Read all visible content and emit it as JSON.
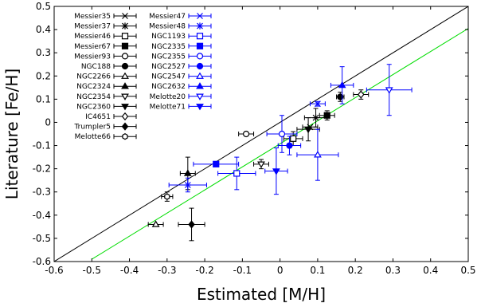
{
  "chart_data": {
    "type": "scatter",
    "xlabel": "Estimated [M/H]",
    "ylabel": "Literature [Fe/H]",
    "xlim": [
      -0.6,
      0.5
    ],
    "ylim": [
      -0.6,
      0.5
    ],
    "xticks": [
      "-0.6",
      "-0.5",
      "-0.4",
      "-0.3",
      "-0.2",
      "-0.1",
      "0",
      "0.1",
      "0.2",
      "0.3",
      "0.4",
      "0.5"
    ],
    "yticks": [
      "-0.6",
      "-0.5",
      "-0.4",
      "-0.3",
      "-0.2",
      "-0.1",
      "0",
      "0.1",
      "0.2",
      "0.3",
      "0.4",
      "0.5"
    ],
    "grid": false,
    "legend_position": "top-left",
    "colors": {
      "black": "#000000",
      "blue": "#0000ff",
      "fit": "#00dd00"
    },
    "lines": [
      {
        "kind": "one-to-one",
        "color": "#000000",
        "x": [
          -0.6,
          0.5
        ],
        "y": [
          -0.6,
          0.5
        ]
      },
      {
        "kind": "fit",
        "color": "#00dd00",
        "x": [
          -0.5,
          0.5
        ],
        "y": [
          -0.59,
          0.405
        ]
      }
    ],
    "series": [
      {
        "name": "Messier35",
        "marker": "x",
        "color": "#000000",
        "x": 0.08,
        "y": -0.02,
        "xerr": 0.02,
        "yerr": 0.0
      },
      {
        "name": "Messier37",
        "marker": "asterisk",
        "color": "#000000",
        "x": 0.095,
        "y": 0.02,
        "xerr": 0.03,
        "yerr": 0.04
      },
      {
        "name": "Messier46",
        "marker": "square-open",
        "color": "#000000",
        "x": 0.035,
        "y": -0.07,
        "xerr": 0.025,
        "yerr": 0.03
      },
      {
        "name": "Messier67",
        "marker": "square-filled",
        "color": "#000000",
        "x": 0.125,
        "y": 0.03,
        "xerr": 0.02,
        "yerr": 0.02
      },
      {
        "name": "Messier93",
        "marker": "circle-open",
        "color": "#000000",
        "x": -0.09,
        "y": -0.05,
        "xerr": 0.02,
        "yerr": 0.0
      },
      {
        "name": "NGC188",
        "marker": "circle-filled",
        "color": "#000000",
        "x": 0.16,
        "y": 0.11,
        "xerr": 0.01,
        "yerr": 0.02
      },
      {
        "name": "NGC2266",
        "marker": "triangle-open",
        "color": "#000000",
        "x": -0.33,
        "y": -0.44,
        "xerr": 0.02,
        "yerr": 0.0
      },
      {
        "name": "NGC2324",
        "marker": "triangle-filled",
        "color": "#000000",
        "x": -0.245,
        "y": -0.22,
        "xerr": 0.02,
        "yerr": 0.07
      },
      {
        "name": "NGC2354",
        "marker": "triangle-down-open",
        "color": "#000000",
        "x": -0.05,
        "y": -0.18,
        "xerr": 0.02,
        "yerr": 0.02
      },
      {
        "name": "NGC2360",
        "marker": "triangle-down-filled",
        "color": "#000000",
        "x": 0.075,
        "y": -0.03,
        "xerr": 0.03,
        "yerr": 0.05
      },
      {
        "name": "IC4651",
        "marker": "diamond-open",
        "color": "#000000",
        "x": 0.215,
        "y": 0.12,
        "xerr": 0.02,
        "yerr": 0.02
      },
      {
        "name": "Trumpler5",
        "marker": "diamond-filled",
        "color": "#000000",
        "x": -0.235,
        "y": -0.44,
        "xerr": 0.035,
        "yerr": 0.07
      },
      {
        "name": "Melotte66",
        "marker": "hexagon-open",
        "color": "#000000",
        "x": -0.3,
        "y": -0.32,
        "xerr": 0.015,
        "yerr": 0.02
      },
      {
        "name": "Messier47",
        "marker": "x",
        "color": "#0000ff",
        "x": 0.1,
        "y": 0.08,
        "xerr": 0.02,
        "yerr": 0.01
      },
      {
        "name": "Messier48",
        "marker": "asterisk",
        "color": "#0000ff",
        "x": -0.245,
        "y": -0.27,
        "xerr": 0.05,
        "yerr": 0.03
      },
      {
        "name": "NGC1193",
        "marker": "square-open",
        "color": "#0000ff",
        "x": -0.115,
        "y": -0.22,
        "xerr": 0.05,
        "yerr": 0.07
      },
      {
        "name": "NGC2335",
        "marker": "square-filled",
        "color": "#0000ff",
        "x": -0.17,
        "y": -0.18,
        "xerr": 0.06,
        "yerr": 0.0
      },
      {
        "name": "NGC2355",
        "marker": "circle-open",
        "color": "#0000ff",
        "x": 0.005,
        "y": -0.05,
        "xerr": 0.04,
        "yerr": 0.08
      },
      {
        "name": "NGC2527",
        "marker": "circle-filled",
        "color": "#0000ff",
        "x": 0.025,
        "y": -0.1,
        "xerr": 0.03,
        "yerr": 0.04
      },
      {
        "name": "NGC2547",
        "marker": "triangle-open",
        "color": "#0000ff",
        "x": 0.1,
        "y": -0.14,
        "xerr": 0.055,
        "yerr": 0.11
      },
      {
        "name": "NGC2632",
        "marker": "triangle-filled",
        "color": "#0000ff",
        "x": 0.165,
        "y": 0.16,
        "xerr": 0.03,
        "yerr": 0.08
      },
      {
        "name": "Melotte20",
        "marker": "triangle-down-open",
        "color": "#0000ff",
        "x": 0.29,
        "y": 0.14,
        "xerr": 0.06,
        "yerr": 0.11
      },
      {
        "name": "Melotte71",
        "marker": "triangle-down-filled",
        "color": "#0000ff",
        "x": -0.01,
        "y": -0.21,
        "xerr": 0.03,
        "yerr": 0.1
      }
    ]
  }
}
